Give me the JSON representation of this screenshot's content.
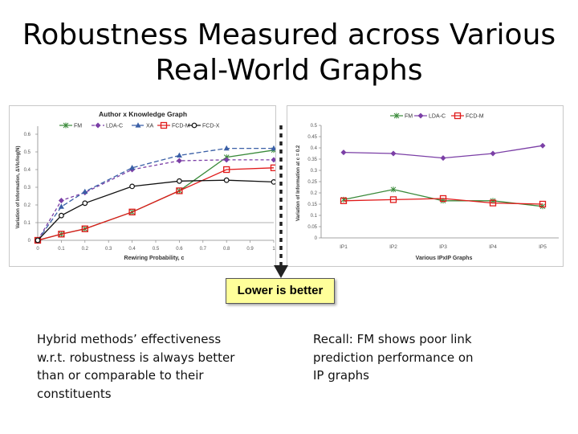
{
  "slide": {
    "title_lines": [
      "Robustness Measured across Various",
      "Real-World Graphs"
    ],
    "callout": "Lower is better",
    "note_left": [
      "Hybrid methods’ effectiveness",
      "w.r.t. robustness is always better",
      "than or comparable to their",
      "constituents"
    ],
    "note_right": [
      "Recall: FM shows poor link",
      "prediction performance on",
      "IP graphs"
    ]
  },
  "chart_data": [
    {
      "type": "line",
      "title": "Author x Knowledge Graph",
      "xlabel": "Rewiring Probability, c",
      "ylabel": "Variation of Information, ΔVIc/log(N)",
      "x": [
        0,
        0.1,
        0.2,
        0.4,
        0.6,
        0.8,
        1
      ],
      "x_ticks": [
        0,
        0.1,
        0.2,
        0.3,
        0.4,
        0.5,
        0.6,
        0.7,
        0.8,
        0.9,
        1
      ],
      "x_tick_labels": [
        "0",
        "0.1",
        "0.2",
        "0.3",
        "0.4",
        "0.5",
        "0.6",
        "0.7",
        "0.8",
        "0.9",
        "1"
      ],
      "y_ticks": [
        0,
        0.1,
        0.2,
        0.3,
        0.4,
        0.5,
        0.6
      ],
      "y_tick_labels": [
        "0",
        "0.1",
        "0.2",
        "0.3",
        "0.4",
        "0.5",
        "0.6"
      ],
      "xlim": [
        0,
        1
      ],
      "ylim": [
        0,
        0.6
      ],
      "grid": false,
      "legend_position": "top",
      "series": [
        {
          "name": "FM",
          "color": "#3a8a3a",
          "dash": "",
          "marker": "asterisk",
          "values": [
            0,
            0.035,
            0.065,
            0.16,
            0.28,
            0.47,
            0.51
          ]
        },
        {
          "name": "LDA-C",
          "color": "#7b3fa6",
          "dash": "4,3",
          "marker": "diamond",
          "values": [
            0,
            0.225,
            0.27,
            0.4,
            0.45,
            0.455,
            0.455
          ]
        },
        {
          "name": "XA",
          "color": "#3a5fa6",
          "dash": "6,3",
          "marker": "triangle",
          "values": [
            0,
            0.19,
            0.275,
            0.41,
            0.48,
            0.52,
            0.52
          ]
        },
        {
          "name": "FCD-M",
          "color": "#e01a1a",
          "dash": "",
          "marker": "square",
          "values": [
            0,
            0.035,
            0.065,
            0.16,
            0.28,
            0.4,
            0.41
          ]
        },
        {
          "name": "FCD-X",
          "color": "#111111",
          "dash": "",
          "marker": "circle",
          "values": [
            0,
            0.14,
            0.21,
            0.305,
            0.335,
            0.34,
            0.33
          ]
        }
      ]
    },
    {
      "type": "line",
      "title": "",
      "xlabel": "Various IPxIP Graphs",
      "ylabel": "Variation of Information at c = 0.2",
      "categories": [
        "IP1",
        "IP2",
        "IP3",
        "IP4",
        "IP5"
      ],
      "y_ticks": [
        0,
        0.05,
        0.1,
        0.15,
        0.2,
        0.25,
        0.3,
        0.35,
        0.4,
        0.45,
        0.5
      ],
      "y_tick_labels": [
        "0",
        "0.05",
        "0.1",
        "0.15",
        "0.2",
        "0.25",
        "0.3",
        "0.35",
        "0.4",
        "0.45",
        "0.5"
      ],
      "ylim": [
        0,
        0.5
      ],
      "grid": false,
      "legend_position": "top",
      "series": [
        {
          "name": "FM",
          "color": "#3a8a3a",
          "dash": "",
          "marker": "asterisk",
          "values": [
            0.17,
            0.215,
            0.165,
            0.165,
            0.14
          ]
        },
        {
          "name": "LDA-C",
          "color": "#7b3fa6",
          "dash": "",
          "marker": "diamond",
          "values": [
            0.38,
            0.375,
            0.355,
            0.375,
            0.41
          ]
        },
        {
          "name": "FCD-M",
          "color": "#e01a1a",
          "dash": "",
          "marker": "square",
          "values": [
            0.165,
            0.17,
            0.175,
            0.155,
            0.15
          ]
        }
      ]
    }
  ]
}
